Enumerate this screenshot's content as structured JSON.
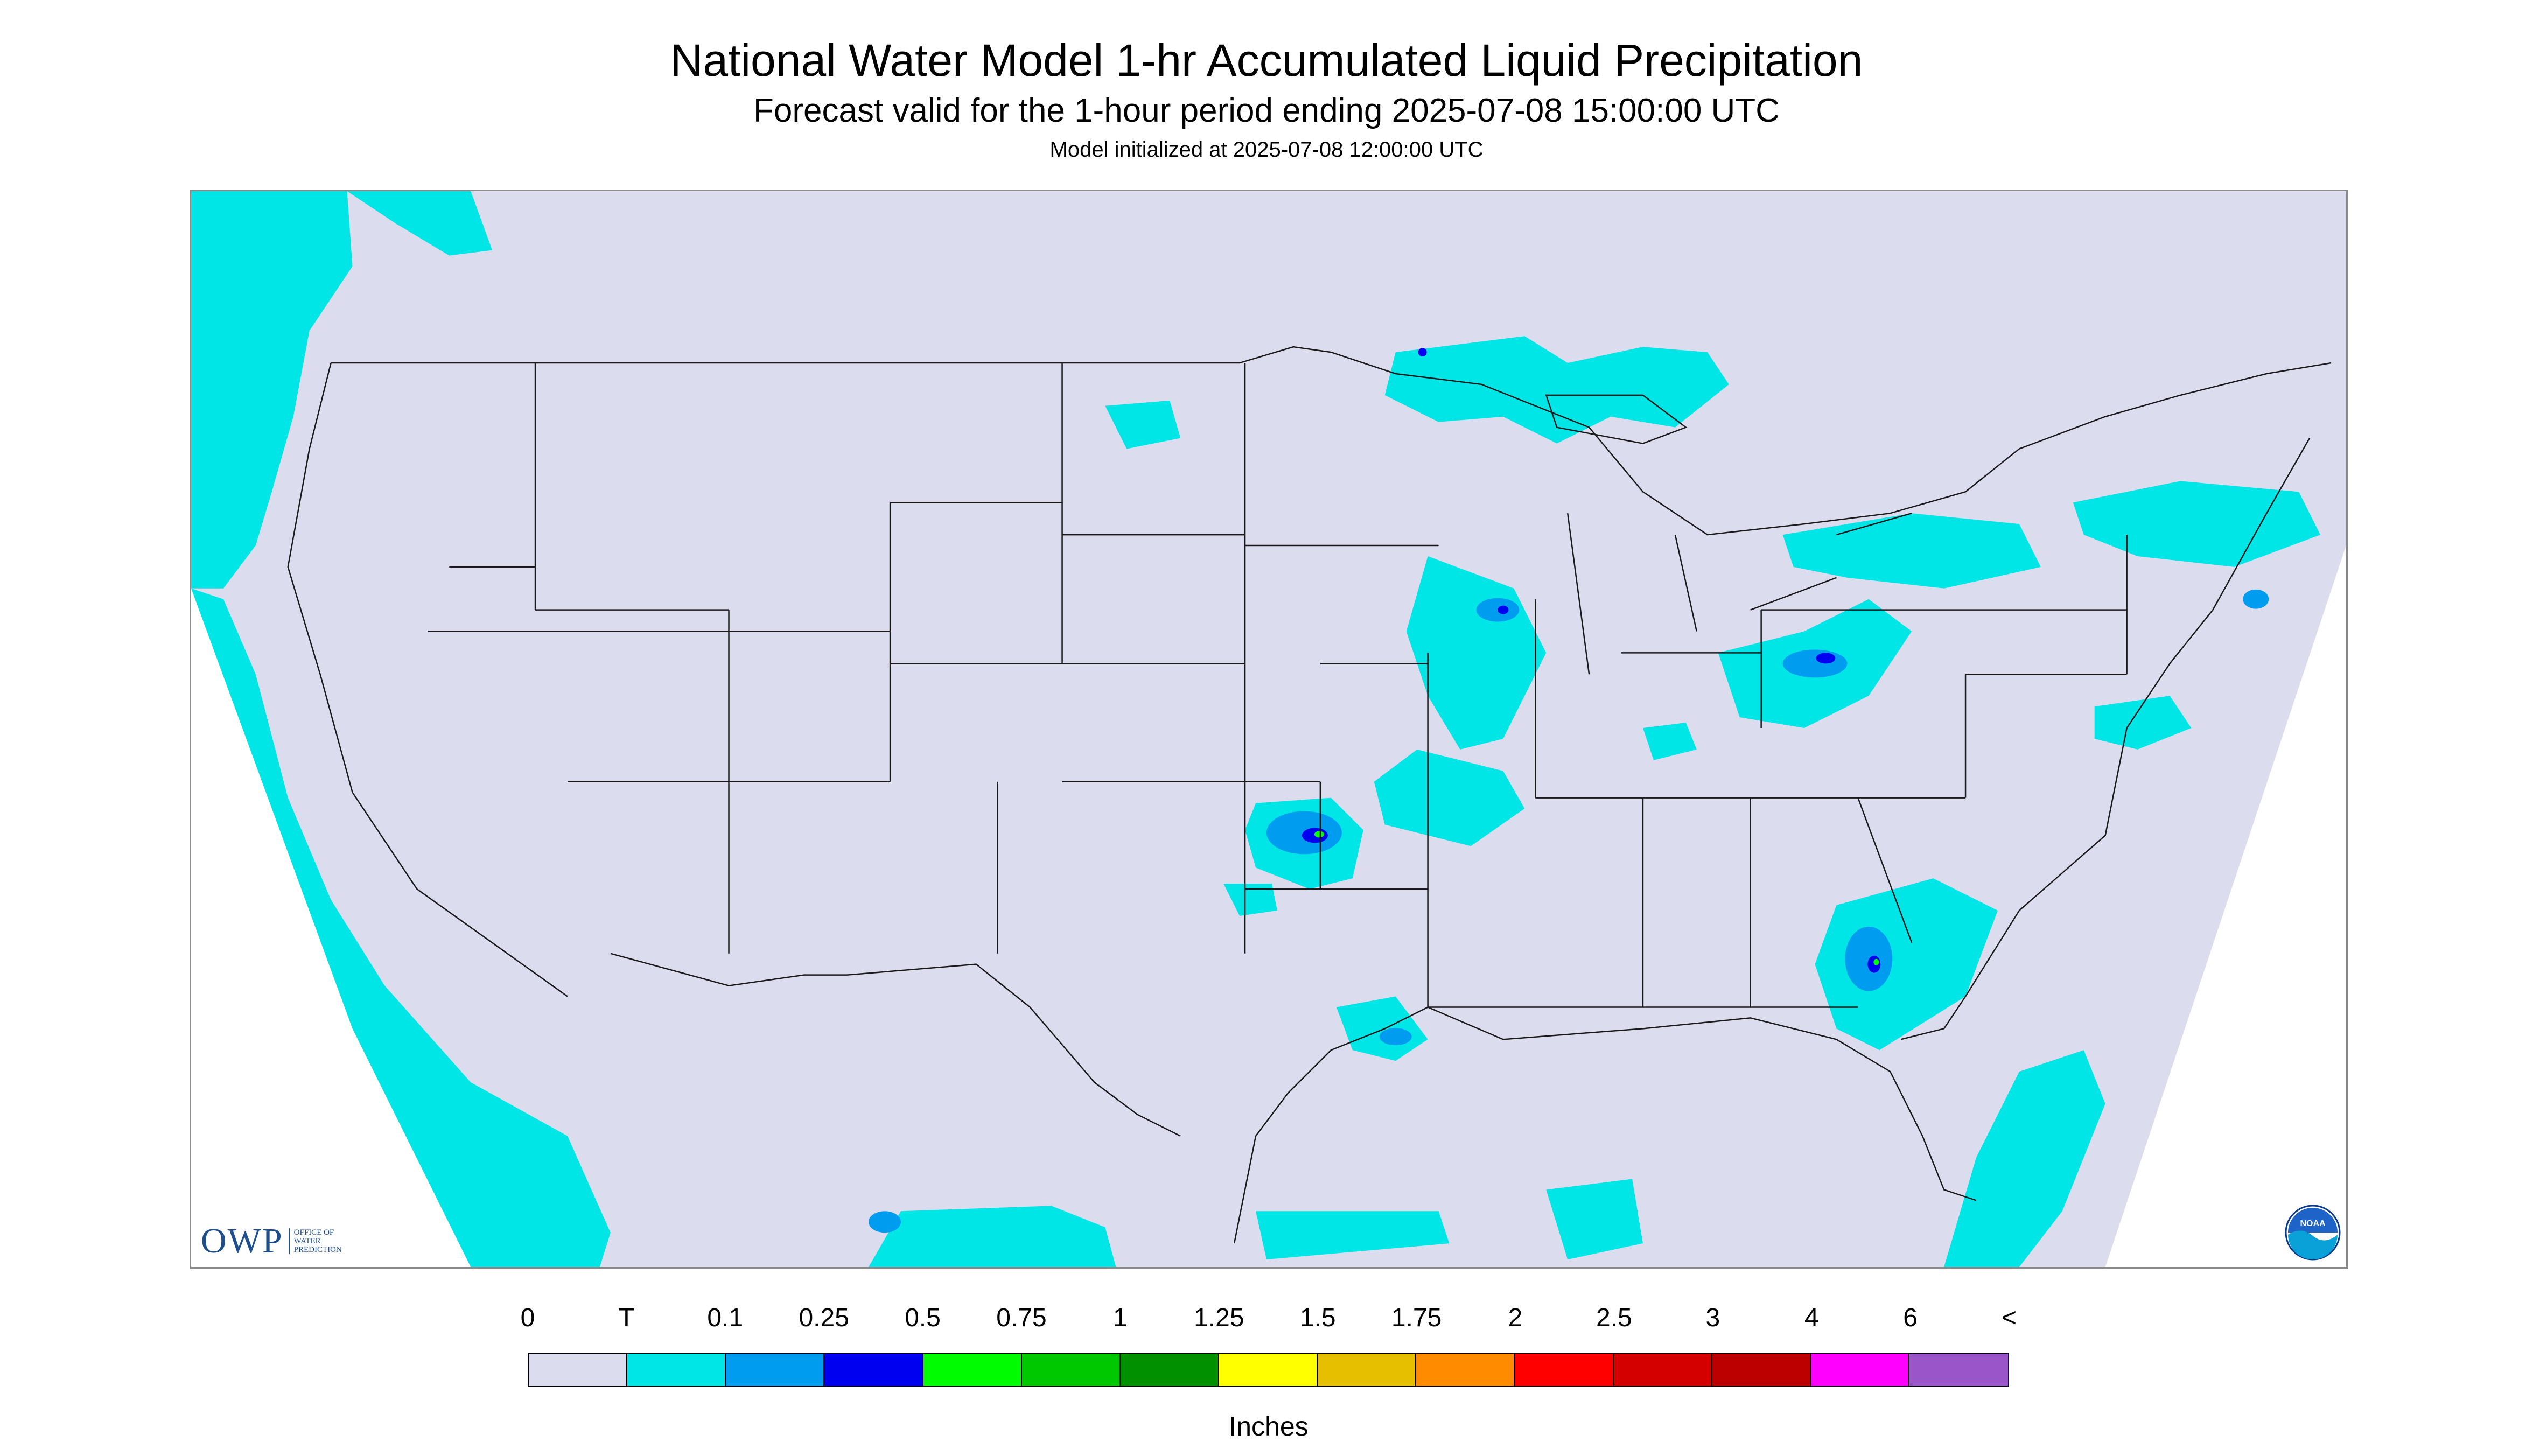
{
  "title": "National Water Model 1-hr Accumulated Liquid Precipitation",
  "subtitle": "Forecast valid for the 1-hour period ending 2025-07-08 15:00:00 UTC",
  "init_text": "Model initialized at 2025-07-08 12:00:00 UTC",
  "logos": {
    "owp_mark": "OWP",
    "owp_text": "OFFICE OF WATER PREDICTION",
    "noaa_text": "NOAA"
  },
  "colors": {
    "land_background": "#dcdcef",
    "state_lines": "#1a1a1a",
    "outside_domain": "#ffffff"
  },
  "legend": {
    "unit": "Inches",
    "labels": [
      "0",
      "T",
      "0.1",
      "0.25",
      "0.5",
      "0.75",
      "1",
      "1.25",
      "1.5",
      "1.75",
      "2",
      "2.5",
      "3",
      "4",
      "6",
      "<"
    ],
    "colors": [
      "#dcdcef",
      "#00e5e5",
      "#009cf0",
      "#0000f0",
      "#00fc00",
      "#00c800",
      "#009000",
      "#ffff00",
      "#e6bf00",
      "#ff8c00",
      "#ff0000",
      "#d40000",
      "#bc0000",
      "#ff00ff",
      "#9a55c8"
    ]
  },
  "map": {
    "type": "precipitation map",
    "region": "Continental United States",
    "precip_areas": [
      {
        "region": "Pacific Northwest / British Columbia coast",
        "category": "T"
      },
      {
        "region": "Pacific Ocean off California and Baja",
        "category": "T"
      },
      {
        "region": "Lake Superior / Upper Peninsula",
        "category": "T",
        "max_category": "0.1"
      },
      {
        "region": "Eastern Iowa / Illinois / Wisconsin",
        "category": "T",
        "max_category": "0.25"
      },
      {
        "region": "NE Oklahoma / SW Missouri",
        "category": "T",
        "max_category": "0.5"
      },
      {
        "region": "Texas Gulf coast / Louisiana",
        "category": "T",
        "max_category": "0.25"
      },
      {
        "region": "Ohio / Pennsylvania / Lake Erie",
        "category": "T",
        "max_category": "0.25"
      },
      {
        "region": "Southern Ontario / upstate New York",
        "category": "T"
      },
      {
        "region": "Atlantic off the Carolinas",
        "category": "T",
        "max_category": "0.5"
      },
      {
        "region": "New England / Gulf of Maine",
        "category": "T",
        "max_category": "0.25"
      },
      {
        "region": "Western Atlantic off Florida",
        "category": "T"
      },
      {
        "region": "Southern Mexico / Pacific coast",
        "category": "T",
        "max_category": "0.25"
      }
    ]
  }
}
